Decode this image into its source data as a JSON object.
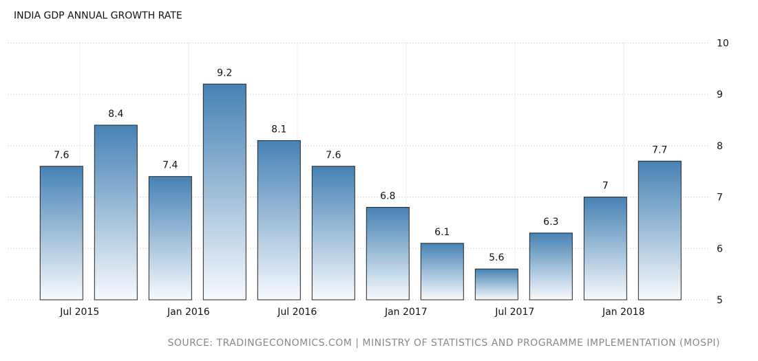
{
  "chart_data": {
    "type": "bar",
    "title": "INDIA GDP ANNUAL GROWTH RATE",
    "source": "SOURCE: TRADINGECONOMICS.COM | MINISTRY OF STATISTICS AND PROGRAMME IMPLEMENTATION (MOSPI)",
    "xlabel": "",
    "ylabel": "",
    "ylim": [
      5,
      10
    ],
    "yticks": [
      "5",
      "6",
      "7",
      "8",
      "9",
      "10"
    ],
    "xticks": [
      "Jul 2015",
      "Jan 2016",
      "Jul 2016",
      "Jan 2017",
      "Jul 2017",
      "Jan 2018"
    ],
    "values": [
      7.6,
      8.4,
      7.4,
      9.2,
      8.1,
      7.6,
      6.8,
      6.1,
      5.6,
      6.3,
      7,
      7.7
    ],
    "labels": [
      "7.6",
      "8.4",
      "7.4",
      "9.2",
      "8.1",
      "7.6",
      "6.8",
      "6.1",
      "5.6",
      "6.3",
      "7",
      "7.7"
    ],
    "grid": true,
    "y_axis_side": "right",
    "colors": {
      "bar_top": "#4682b4",
      "bar_bottom": "#f7fafd",
      "grid": "#dddddd"
    }
  }
}
